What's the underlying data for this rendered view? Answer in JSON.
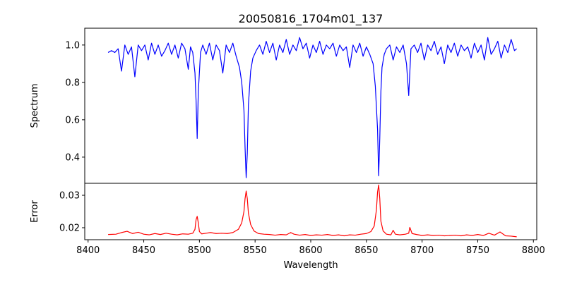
{
  "chart_data": [
    {
      "type": "line",
      "title": "20050816_1704m01_137",
      "xlabel": "",
      "ylabel": "Spectrum",
      "xlim": [
        8400,
        8800
      ],
      "ylim": [
        0.26,
        1.09
      ],
      "yticks": [
        0.4,
        0.6,
        0.8,
        1.0
      ],
      "yticklabels": [
        "0.4",
        "0.6",
        "0.8",
        "1.0"
      ],
      "grid": false,
      "series": [
        {
          "color": "#0000ff",
          "x": [
            8418,
            8421,
            8424,
            8427,
            8430,
            8433,
            8436,
            8439,
            8442,
            8445,
            8448,
            8451,
            8454,
            8457,
            8460,
            8463,
            8466,
            8469,
            8472,
            8475,
            8478,
            8481,
            8484,
            8487,
            8490,
            8492,
            8494,
            8496,
            8497,
            8498,
            8499,
            8501,
            8503,
            8506,
            8509,
            8512,
            8515,
            8518,
            8521,
            8524,
            8527,
            8530,
            8533,
            8536,
            8538,
            8540,
            8541,
            8542,
            8543,
            8544,
            8546,
            8548,
            8551,
            8554,
            8557,
            8560,
            8563,
            8566,
            8569,
            8572,
            8575,
            8578,
            8581,
            8584,
            8587,
            8590,
            8593,
            8596,
            8599,
            8602,
            8605,
            8608,
            8611,
            8614,
            8617,
            8620,
            8623,
            8626,
            8629,
            8632,
            8635,
            8638,
            8641,
            8644,
            8647,
            8650,
            8653,
            8656,
            8658,
            8660,
            8661,
            8662,
            8663,
            8664,
            8666,
            8668,
            8671,
            8674,
            8677,
            8680,
            8683,
            8686,
            8688,
            8690,
            8693,
            8696,
            8699,
            8702,
            8705,
            8708,
            8711,
            8714,
            8717,
            8720,
            8723,
            8726,
            8729,
            8732,
            8735,
            8738,
            8741,
            8744,
            8747,
            8750,
            8753,
            8756,
            8759,
            8762,
            8765,
            8768,
            8771,
            8774,
            8777,
            8780,
            8783,
            8785
          ],
          "y": [
            0.96,
            0.97,
            0.96,
            0.98,
            0.86,
            1.0,
            0.95,
            0.99,
            0.83,
            1.0,
            0.97,
            1.0,
            0.92,
            1.01,
            0.95,
            1.0,
            0.94,
            0.97,
            1.01,
            0.95,
            1.0,
            0.93,
            1.01,
            0.98,
            0.87,
            0.99,
            0.96,
            0.85,
            0.7,
            0.5,
            0.75,
            0.96,
            1.0,
            0.95,
            1.01,
            0.92,
            1.0,
            0.97,
            0.85,
            1.0,
            0.96,
            1.01,
            0.94,
            0.88,
            0.8,
            0.65,
            0.45,
            0.29,
            0.42,
            0.68,
            0.86,
            0.93,
            0.97,
            1.0,
            0.95,
            1.02,
            0.96,
            1.01,
            0.92,
            1.0,
            0.96,
            1.03,
            0.95,
            1.0,
            0.97,
            1.04,
            0.98,
            1.01,
            0.93,
            1.0,
            0.96,
            1.02,
            0.95,
            1.0,
            0.98,
            1.01,
            0.94,
            1.0,
            0.97,
            0.99,
            0.88,
            1.0,
            0.96,
            1.01,
            0.94,
            0.99,
            0.95,
            0.9,
            0.78,
            0.55,
            0.3,
            0.5,
            0.75,
            0.88,
            0.95,
            0.98,
            1.0,
            0.92,
            0.99,
            0.96,
            1.0,
            0.9,
            0.73,
            0.98,
            1.0,
            0.96,
            1.01,
            0.92,
            1.0,
            0.97,
            1.02,
            0.95,
            0.99,
            0.9,
            1.0,
            0.96,
            1.01,
            0.94,
            1.0,
            0.97,
            0.99,
            0.93,
            1.01,
            0.96,
            1.0,
            0.92,
            1.04,
            0.95,
            0.98,
            1.02,
            0.93,
            1.0,
            0.96,
            1.03,
            0.97,
            0.98
          ]
        }
      ]
    },
    {
      "type": "line",
      "title": "",
      "xlabel": "Wavelength",
      "ylabel": "Error",
      "xlim": [
        8397,
        8803
      ],
      "xticks": [
        8400,
        8450,
        8500,
        8550,
        8600,
        8650,
        8700,
        8750,
        8800
      ],
      "xticklabels": [
        "8400",
        "8450",
        "8500",
        "8550",
        "8600",
        "8650",
        "8700",
        "8750",
        "8800"
      ],
      "ylim": [
        0.0163,
        0.0337
      ],
      "yticks": [
        0.02,
        0.03
      ],
      "yticklabels": [
        "0.02",
        "0.03"
      ],
      "grid": false,
      "series": [
        {
          "color": "#ff0000",
          "x": [
            8418,
            8425,
            8430,
            8435,
            8440,
            8445,
            8450,
            8455,
            8460,
            8465,
            8470,
            8475,
            8480,
            8485,
            8490,
            8494,
            8496,
            8497,
            8498,
            8499,
            8500,
            8502,
            8506,
            8510,
            8515,
            8520,
            8525,
            8530,
            8535,
            8538,
            8540,
            8541,
            8542,
            8543,
            8544,
            8546,
            8549,
            8553,
            8558,
            8563,
            8568,
            8573,
            8578,
            8582,
            8585,
            8590,
            8595,
            8600,
            8605,
            8610,
            8615,
            8620,
            8625,
            8630,
            8635,
            8640,
            8645,
            8650,
            8654,
            8657,
            8659,
            8660,
            8661,
            8662,
            8663,
            8665,
            8668,
            8672,
            8674,
            8676,
            8680,
            8685,
            8688,
            8689,
            8691,
            8695,
            8700,
            8705,
            8710,
            8715,
            8720,
            8725,
            8730,
            8735,
            8740,
            8745,
            8750,
            8755,
            8760,
            8765,
            8770,
            8775,
            8780,
            8785
          ],
          "y": [
            0.0179,
            0.018,
            0.0185,
            0.0189,
            0.0182,
            0.0186,
            0.018,
            0.0178,
            0.0182,
            0.0179,
            0.0183,
            0.018,
            0.0178,
            0.0181,
            0.018,
            0.0183,
            0.0195,
            0.0225,
            0.0235,
            0.0215,
            0.0188,
            0.0181,
            0.0183,
            0.0185,
            0.0182,
            0.0183,
            0.0182,
            0.0185,
            0.0195,
            0.0215,
            0.025,
            0.029,
            0.0313,
            0.029,
            0.0245,
            0.021,
            0.019,
            0.0182,
            0.018,
            0.0179,
            0.0177,
            0.0179,
            0.0178,
            0.0185,
            0.018,
            0.0177,
            0.0179,
            0.0176,
            0.0178,
            0.0177,
            0.0179,
            0.0176,
            0.0178,
            0.0175,
            0.0178,
            0.0177,
            0.018,
            0.0182,
            0.0188,
            0.0205,
            0.0255,
            0.031,
            0.0332,
            0.029,
            0.022,
            0.019,
            0.018,
            0.0178,
            0.0192,
            0.018,
            0.0178,
            0.018,
            0.0183,
            0.0201,
            0.0182,
            0.0179,
            0.0176,
            0.0178,
            0.0176,
            0.0177,
            0.0175,
            0.0176,
            0.0177,
            0.0175,
            0.0178,
            0.0176,
            0.0179,
            0.0176,
            0.0183,
            0.0177,
            0.0187,
            0.0175,
            0.0174,
            0.0172
          ]
        }
      ]
    }
  ]
}
